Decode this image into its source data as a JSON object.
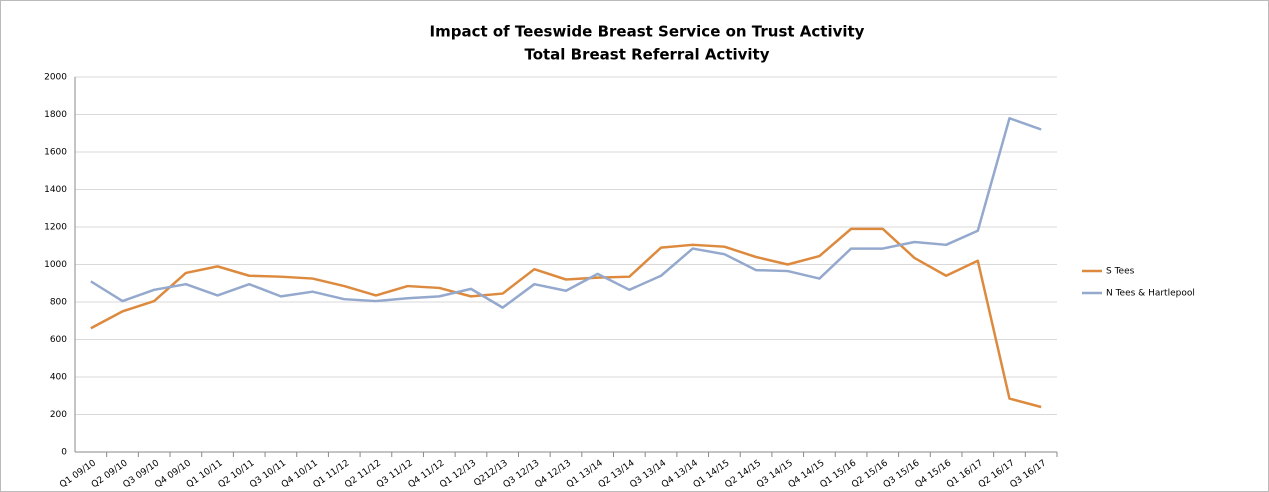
{
  "chart_data": {
    "type": "line",
    "title": "Impact of Teeswide Breast Service on Trust Activity",
    "subtitle": "Total Breast Referral Activity",
    "categories": [
      "Q1 09/10",
      "Q2 09/10",
      "Q3 09/10",
      "Q4 09/10",
      "Q1 10/11",
      "Q2 10/11",
      "Q3 10/11",
      "Q4 10/11",
      "Q1 11/12",
      "Q2 11/12",
      "Q3 11/12",
      "Q4 11/12",
      "Q1 12/13",
      "Q212/13",
      "Q3 12/13",
      "Q4 12/13",
      "Q1 13/14",
      "Q2 13/14",
      "Q3 13/14",
      "Q4 13/14",
      "Q1 14/15",
      "Q2 14/15",
      "Q3 14/15",
      "Q4 14/15",
      "Q1 15/16",
      "Q2 15/16",
      "Q3 15/16",
      "Q4 15/16",
      "Q1 16/17",
      "Q2 16/17",
      "Q3 16/17"
    ],
    "series": [
      {
        "name": "S Tees",
        "color": "#dd8a3e",
        "values": [
          660,
          750,
          805,
          955,
          990,
          940,
          935,
          925,
          885,
          835,
          885,
          875,
          830,
          845,
          975,
          920,
          930,
          935,
          1090,
          1105,
          1095,
          1040,
          1000,
          1045,
          1190,
          1190,
          1035,
          940,
          1020,
          285,
          240
        ]
      },
      {
        "name": "N Tees & Hartlepool",
        "color": "#94a9cd",
        "values": [
          910,
          805,
          865,
          895,
          835,
          895,
          830,
          855,
          815,
          805,
          820,
          830,
          870,
          770,
          895,
          860,
          950,
          865,
          940,
          1085,
          1055,
          970,
          965,
          925,
          1085,
          1085,
          1120,
          1105,
          1180,
          1780,
          1720
        ]
      }
    ],
    "ylim": [
      0,
      2000
    ],
    "yticks": [
      0,
      200,
      400,
      600,
      800,
      1000,
      1200,
      1400,
      1600,
      1800,
      2000
    ],
    "grid": true,
    "legend": "right"
  }
}
